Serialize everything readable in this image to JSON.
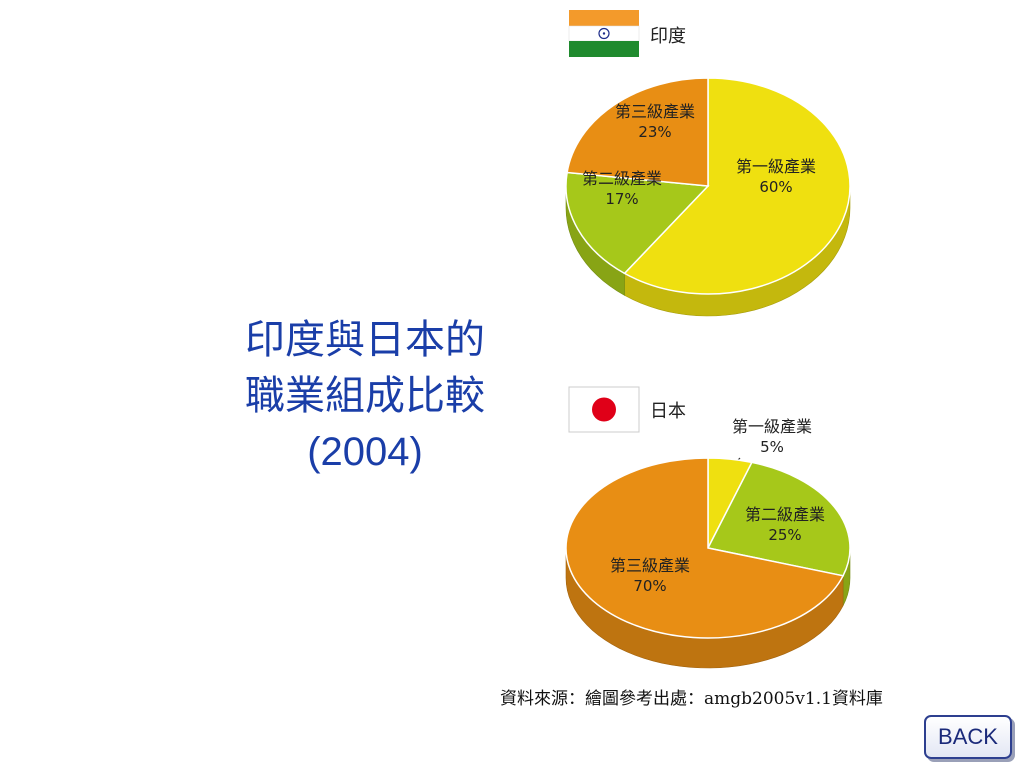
{
  "title": {
    "line1": "印度與日本的",
    "line2": "職業組成比較",
    "line3": "(2004)"
  },
  "source": "資料來源：繪圖參考出處：amgb2005v1.1資料庫",
  "back_button": "BACK",
  "chart_data": [
    {
      "type": "pie",
      "title": "印度",
      "flag-icon": "india-flag-icon",
      "slices": [
        {
          "label": "第一級產業",
          "value": 60,
          "value_label": "60%",
          "color": "#efe010"
        },
        {
          "label": "第二級產業",
          "value": 17,
          "value_label": "17%",
          "color": "#a6c81a"
        },
        {
          "label": "第三級產業",
          "value": 23,
          "value_label": "23%",
          "color": "#e88e14"
        }
      ]
    },
    {
      "type": "pie",
      "title": "日本",
      "flag-icon": "japan-flag-icon",
      "slices": [
        {
          "label": "第一級產業",
          "value": 5,
          "value_label": "5%",
          "color": "#efe010"
        },
        {
          "label": "第二級產業",
          "value": 25,
          "value_label": "25%",
          "color": "#a6c81a"
        },
        {
          "label": "第三級產業",
          "value": 70,
          "value_label": "70%",
          "color": "#e88e14"
        }
      ]
    }
  ]
}
